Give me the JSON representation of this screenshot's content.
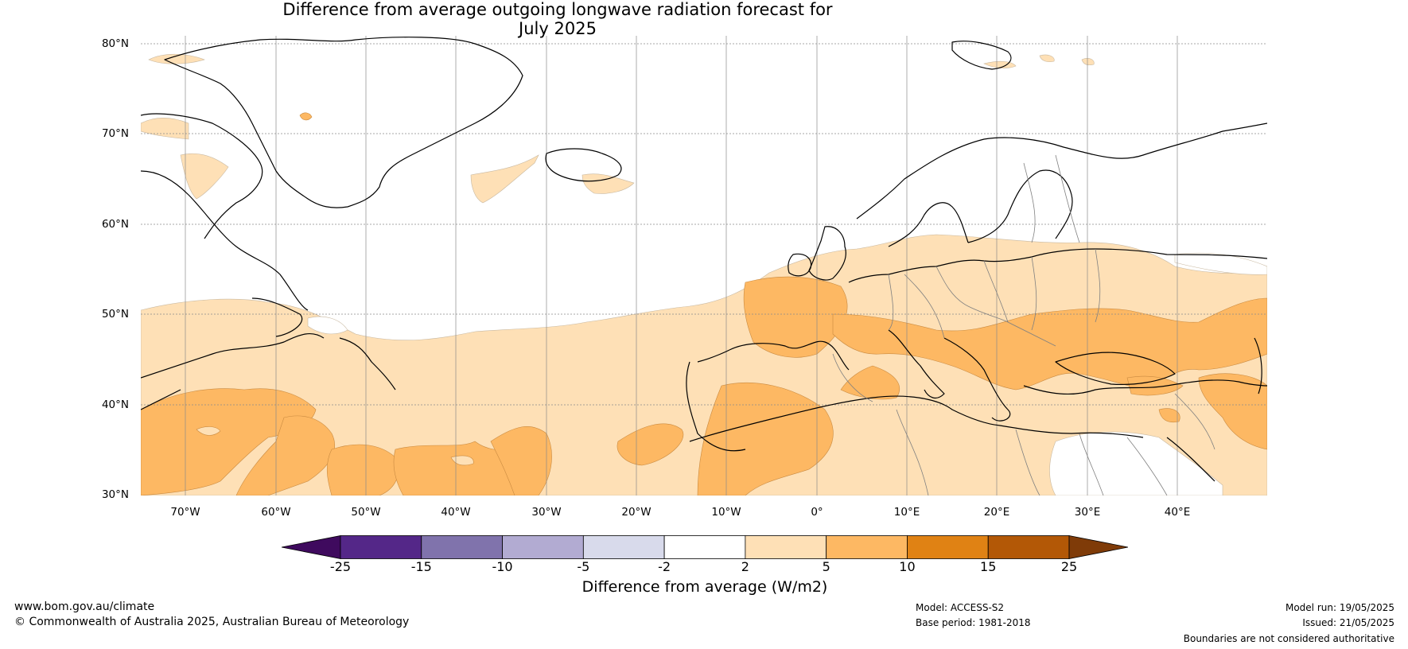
{
  "title": {
    "line1": "Difference from average outgoing longwave radiation forecast for",
    "line2": "July 2025"
  },
  "map": {
    "lat_labels": [
      "80°N",
      "70°N",
      "60°N",
      "50°N",
      "40°N",
      "30°N"
    ],
    "lon_labels": [
      "70°W",
      "60°W",
      "50°W",
      "40°W",
      "30°W",
      "20°W",
      "10°W",
      "0°",
      "10°E",
      "20°E",
      "30°E",
      "40°E"
    ],
    "colors": {
      "land_outline": "#000000",
      "border": "#808080",
      "grid": "#888888"
    }
  },
  "colorbar": {
    "ticks": [
      "-25",
      "-15",
      "-10",
      "-5",
      "-2",
      "2",
      "5",
      "10",
      "15",
      "25"
    ],
    "colors": [
      "#3f0a5e",
      "#542788",
      "#8073ac",
      "#b2abd2",
      "#d8daeb",
      "#ffffff",
      "#fee0b6",
      "#fdb863",
      "#e08214",
      "#b35806",
      "#7f3b08"
    ],
    "label": "Difference from average (W/m2)"
  },
  "footer": {
    "url": "www.bom.gov.au/climate",
    "copyright": "© Commonwealth of Australia 2025, Australian Bureau of Meteorology",
    "model": "Model: ACCESS-S2",
    "base_period": "Base period: 1981-2018",
    "model_run": "Model run: 19/05/2025",
    "issued": "Issued: 21/05/2025",
    "disclaimer": "Boundaries are not considered authoritative"
  }
}
